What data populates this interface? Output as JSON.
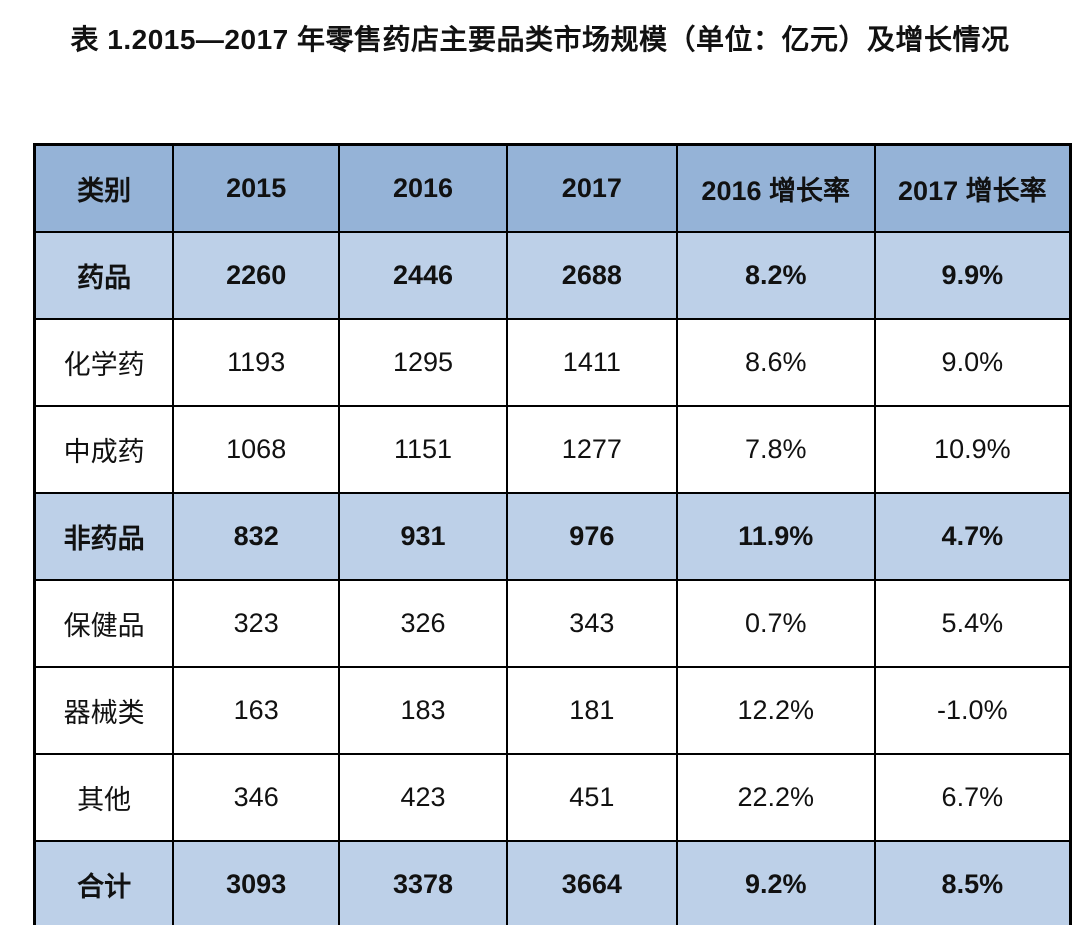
{
  "title": "表 1.2015—2017 年零售药店主要品类市场规模（单位：亿元）及增长情况",
  "colors": {
    "header_bg": "#95B3D7",
    "highlight_bg": "#BDD0E8",
    "border": "#000000",
    "text": "#111111"
  },
  "chart_data": {
    "type": "table",
    "title": "表 1.2015—2017 年零售药店主要品类市场规模（单位：亿元）及增长情况",
    "unit": "亿元",
    "columns": [
      "类别",
      "2015",
      "2016",
      "2017",
      "2016 增长率",
      "2017 增长率"
    ],
    "rows": [
      {
        "cells": [
          "药品",
          "2260",
          "2446",
          "2688",
          "8.2%",
          "9.9%"
        ],
        "emphasis": true
      },
      {
        "cells": [
          "化学药",
          "1193",
          "1295",
          "1411",
          "8.6%",
          "9.0%"
        ],
        "emphasis": false
      },
      {
        "cells": [
          "中成药",
          "1068",
          "1151",
          "1277",
          "7.8%",
          "10.9%"
        ],
        "emphasis": false
      },
      {
        "cells": [
          "非药品",
          "832",
          "931",
          "976",
          "11.9%",
          "4.7%"
        ],
        "emphasis": true
      },
      {
        "cells": [
          "保健品",
          "323",
          "326",
          "343",
          "0.7%",
          "5.4%"
        ],
        "emphasis": false
      },
      {
        "cells": [
          "器械类",
          "163",
          "183",
          "181",
          "12.2%",
          "-1.0%"
        ],
        "emphasis": false
      },
      {
        "cells": [
          "其他",
          "346",
          "423",
          "451",
          "22.2%",
          "6.7%"
        ],
        "emphasis": false
      },
      {
        "cells": [
          "合计",
          "3093",
          "3378",
          "3664",
          "9.2%",
          "8.5%"
        ],
        "emphasis": true
      }
    ]
  }
}
